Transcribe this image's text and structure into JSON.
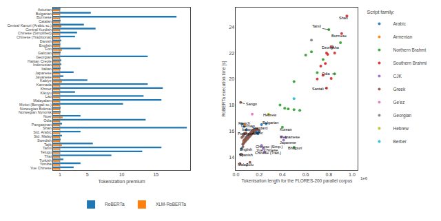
{
  "chart_data": [
    {
      "type": "bar",
      "orientation": "horizontal",
      "categories": [
        "Asturian",
        "Bulgarian",
        "Burmese",
        "Catalan",
        "Central Kanuri (Arabic sc.)",
        "Central Kurdish",
        "Chinese (Simplified)",
        "Chinese (Traditional)",
        "Danish",
        "English",
        "Fon",
        "Galician",
        "Georgian",
        "Haitian Creole",
        "Indonesian",
        "Italian",
        "Japanese",
        "Javanese",
        "Kabiye",
        "Kannada",
        "Khmer",
        "Kikuyu",
        "Lao",
        "Malayalam",
        "Meitei (Bengali sc.)",
        "Norwegian Bokmal",
        "Norwegian Nynorsk",
        "Nuer",
        "Odia",
        "Pangasinan",
        "Shan",
        "Std. Arabic",
        "Std. Malay",
        "Swedish",
        "Tajik",
        "Tamil",
        "Telugu",
        "Thai",
        "Turkish",
        "Yoruba",
        "Yue Chinese"
      ],
      "series": [
        {
          "name": "RoBERTa",
          "color": "#1f77b4",
          "values": [
            1.05,
            5.5,
            18.0,
            1.1,
            4.5,
            6.2,
            3.5,
            3.2,
            1.2,
            1.05,
            4.0,
            1.1,
            13.8,
            1.2,
            1.2,
            1.1,
            3.0,
            1.5,
            5.0,
            13.8,
            16.0,
            3.2,
            13.2,
            15.8,
            10.2,
            1.1,
            1.1,
            4.0,
            13.5,
            1.3,
            19.5,
            4.0,
            1.3,
            1.1,
            5.8,
            15.8,
            13.0,
            8.5,
            1.5,
            4.0,
            3.0
          ]
        },
        {
          "name": "XLM-RoBERTa",
          "color": "#ff7f0e",
          "values": [
            1.0,
            1.0,
            1.0,
            1.0,
            1.2,
            1.0,
            1.0,
            1.0,
            1.0,
            1.0,
            1.3,
            1.0,
            1.0,
            1.0,
            1.0,
            1.0,
            1.0,
            1.0,
            1.3,
            1.0,
            1.0,
            1.0,
            1.0,
            1.0,
            1.0,
            1.0,
            1.0,
            1.4,
            1.0,
            1.0,
            1.0,
            1.0,
            1.0,
            1.0,
            1.3,
            1.0,
            1.0,
            1.0,
            1.0,
            1.0,
            1.0
          ]
        }
      ],
      "x_label": "Tokenization premium",
      "xlim": [
        0,
        20
      ],
      "xticks": [
        1,
        5,
        10,
        15
      ],
      "vlines": [
        1
      ],
      "legend": "lower right",
      "grid": false
    },
    {
      "type": "scatter",
      "x_label": "Tokenisation length for the FLORES-200 parallel corpus",
      "y_label": "RoBERTa execution time [s]",
      "xlim": [
        0.0,
        1.05
      ],
      "ylim": [
        13.0,
        25.5
      ],
      "xticks": [
        {
          "value": 0.0,
          "label": "0.0"
        },
        0.2,
        0.4,
        0.6,
        0.8,
        {
          "value": 1.0,
          "label": "1.0"
        }
      ],
      "yticks": [
        14,
        16,
        18,
        20,
        22,
        24
      ],
      "axis_note": "1e6",
      "legend_title": "Script family:",
      "legend": "upper right",
      "grid": false,
      "series": [
        {
          "name": "Arabic",
          "color": "#1f77b4",
          "x": [
            0.05,
            0.07,
            0.09,
            0.07,
            0.05,
            0.04,
            0.06,
            0.07,
            0.08,
            0.09,
            0.1,
            0.11,
            0.12,
            0.13,
            0.14,
            0.15,
            0.16,
            0.17,
            0.18,
            0.19,
            0.2,
            0.065,
            0.075,
            0.085,
            0.095,
            0.105,
            0.115,
            0.125,
            0.135,
            0.145,
            0.155,
            0.165,
            0.22,
            0.26
          ],
          "values": [
            16.55,
            16.35,
            16.1,
            15.8,
            14.65,
            14.2,
            15.0,
            15.15,
            15.3,
            15.45,
            15.55,
            15.6,
            15.7,
            15.75,
            15.85,
            15.9,
            16.0,
            16.0,
            15.9,
            15.8,
            15.95,
            15.2,
            15.35,
            15.5,
            15.6,
            15.65,
            15.75,
            15.85,
            15.95,
            16.05,
            16.1,
            16.15,
            16.5,
            16.55
          ]
        },
        {
          "name": "Armenian",
          "color": "#ff7f0e",
          "x": [
            0.065,
            0.075,
            0.085
          ],
          "values": [
            15.25,
            16.5,
            15.85
          ]
        },
        {
          "name": "Northern Brahmi",
          "color": "#2ca02c",
          "x": [
            0.38,
            0.42,
            0.45,
            0.5,
            0.55,
            0.5,
            0.65,
            0.6,
            0.7,
            0.75,
            0.8,
            0.85,
            0.9,
            0.4,
            0.5
          ],
          "values": [
            18.0,
            17.75,
            17.7,
            17.65,
            17.6,
            19.8,
            22.1,
            21.85,
            20.5,
            21.5,
            23.8,
            20.4,
            22.8,
            16.3,
            14.75
          ]
        },
        {
          "name": "Southern Brahmi",
          "color": "#d62728",
          "x": [
            0.78,
            0.82,
            0.83,
            0.85,
            0.79,
            0.77,
            0.73,
            0.7,
            0.75,
            0.82,
            0.91,
            0.955,
            0.78
          ],
          "values": [
            22.0,
            22.5,
            22.45,
            22.0,
            21.9,
            21.2,
            21.0,
            20.0,
            20.3,
            20.05,
            23.5,
            24.85,
            19.3
          ]
        },
        {
          "name": "CJK",
          "color": "#9467bd",
          "x": [
            0.22,
            0.235,
            0.245,
            0.41,
            0.39,
            0.43
          ],
          "values": [
            14.9,
            14.65,
            14.4,
            15.3,
            15.55,
            15.5
          ]
        },
        {
          "name": "Greek",
          "color": "#8c564b",
          "x": [
            0.04,
            0.035,
            0.06,
            0.07,
            0.08,
            0.09,
            0.1,
            0.11,
            0.12,
            0.13,
            0.14,
            0.15,
            0.16,
            0.17,
            0.18,
            0.19,
            0.2,
            0.07,
            0.08,
            0.09,
            0.1,
            0.11,
            0.12,
            0.13,
            0.14,
            0.15,
            0.05,
            0.06,
            0.065,
            0.075,
            0.085,
            0.12,
            0.06,
            0.05
          ],
          "values": [
            18.2,
            13.5,
            15.0,
            15.1,
            15.2,
            15.3,
            15.4,
            15.5,
            15.6,
            15.7,
            15.8,
            15.9,
            16.0,
            16.1,
            16.15,
            16.1,
            16.05,
            15.3,
            15.4,
            15.5,
            15.6,
            15.7,
            15.8,
            15.9,
            16.0,
            16.1,
            15.5,
            15.6,
            15.7,
            15.8,
            15.85,
            13.6,
            14.8,
            14.2
          ]
        },
        {
          "name": "Ge'ez",
          "color": "#e377c2",
          "x": [
            0.14
          ],
          "values": [
            17.3
          ]
        },
        {
          "name": "Georgian",
          "color": "#7f7f7f",
          "x": [
            0.65,
            0.83
          ],
          "values": [
            23.0,
            22.5
          ]
        },
        {
          "name": "Hebrew",
          "color": "#bcbd22",
          "x": [
            0.28
          ],
          "values": [
            17.3
          ]
        },
        {
          "name": "Berber",
          "color": "#17becf",
          "x": [
            0.5
          ],
          "values": [
            18.5
          ]
        }
      ],
      "annotations": [
        {
          "text": "Shan",
          "x": 0.955,
          "y": 24.85,
          "text_x": 0.875,
          "text_y": 24.72
        },
        {
          "text": "Tamil",
          "x": 0.8,
          "y": 23.8,
          "text_x": 0.645,
          "text_y": 24.05
        },
        {
          "text": "Burmese",
          "x": 0.91,
          "y": 23.5,
          "text_x": 0.81,
          "text_y": 23.32
        },
        {
          "text": "Dzongkha",
          "x": 0.83,
          "y": 22.5,
          "text_x": 0.725,
          "text_y": 22.42
        },
        {
          "text": "Odia",
          "x": 0.85,
          "y": 20.4,
          "text_x": 0.73,
          "text_y": 20.4
        },
        {
          "text": "Santali",
          "x": 0.78,
          "y": 19.3,
          "text_x": 0.645,
          "text_y": 19.25
        },
        {
          "text": "Sango",
          "x": 0.04,
          "y": 18.2,
          "text_x": 0.075,
          "text_y": 18.1
        },
        {
          "text": "Hebrew",
          "x": 0.28,
          "y": 17.3,
          "text_x": 0.225,
          "text_y": 17.22
        },
        {
          "text": "French",
          "x": 0.05,
          "y": 16.55,
          "text_x": 0.01,
          "text_y": 16.6
        },
        {
          "text": "German",
          "x": 0.07,
          "y": 16.35,
          "text_x": 0.03,
          "text_y": 16.4
        },
        {
          "text": "Standard\nArabic",
          "x": 0.2,
          "y": 15.95,
          "text_x": 0.13,
          "text_y": 16.05
        },
        {
          "text": "Bulgarian",
          "x": 0.25,
          "y": 16.5,
          "text_x": 0.215,
          "text_y": 16.65
        },
        {
          "text": "Korean",
          "x": 0.4,
          "y": 16.3,
          "text_x": 0.365,
          "text_y": 16.1
        },
        {
          "text": "Italian",
          "x": 0.09,
          "y": 16.1,
          "text_x": 0.04,
          "text_y": 16.12
        },
        {
          "text": "Portuguese",
          "x": 0.07,
          "y": 15.8,
          "text_x": 0.005,
          "text_y": 15.82
        },
        {
          "text": "Japanese",
          "x": 0.41,
          "y": 15.3,
          "text_x": 0.365,
          "text_y": 15.1
        },
        {
          "text": "Vietnamese",
          "x": 0.43,
          "y": 15.5,
          "text_x": 0.365,
          "text_y": 15.52
        },
        {
          "text": "English",
          "x": 0.05,
          "y": 14.65,
          "text_x": 0.02,
          "text_y": 14.6
        },
        {
          "text": "Chinese (Simp.)",
          "x": 0.22,
          "y": 14.9,
          "text_x": 0.155,
          "text_y": 14.78
        },
        {
          "text": "Yue Chinese",
          "x": 0.235,
          "y": 14.65,
          "text_x": 0.165,
          "text_y": 14.56
        },
        {
          "text": "Chinese (Trad.)",
          "x": 0.245,
          "y": 14.4,
          "text_x": 0.15,
          "text_y": 14.34
        },
        {
          "text": "Bhojpuri",
          "x": 0.5,
          "y": 14.75,
          "text_x": 0.435,
          "text_y": 14.67
        },
        {
          "text": "Spanish",
          "x": 0.06,
          "y": 14.2,
          "text_x": 0.015,
          "text_y": 14.18
        },
        {
          "text": "Malay",
          "x": 0.035,
          "y": 13.5,
          "text_x": 0.005,
          "text_y": 13.44
        },
        {
          "text": "Zulu",
          "x": 0.12,
          "y": 13.6,
          "text_x": 0.075,
          "text_y": 13.42
        }
      ]
    }
  ]
}
